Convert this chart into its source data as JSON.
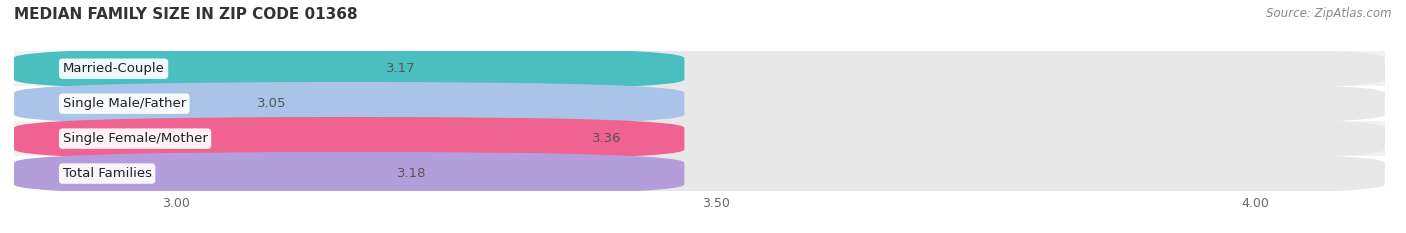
{
  "title": "MEDIAN FAMILY SIZE IN ZIP CODE 01368",
  "source": "Source: ZipAtlas.com",
  "categories": [
    "Married-Couple",
    "Single Male/Father",
    "Single Female/Mother",
    "Total Families"
  ],
  "values": [
    3.17,
    3.05,
    3.36,
    3.18
  ],
  "bar_colors": [
    "#4bbfbf",
    "#aac4e8",
    "#f06292",
    "#b39ddb"
  ],
  "bar_bg_color": "#e8e8e8",
  "xlim": [
    2.85,
    4.12
  ],
  "xticks": [
    3.0,
    3.5,
    4.0
  ],
  "bar_height": 0.62,
  "label_fontsize": 9.5,
  "value_fontsize": 9.5,
  "title_fontsize": 11,
  "source_fontsize": 8.5,
  "background_color": "#ffffff",
  "row_bg_colors": [
    "#f2f2f2",
    "#ffffff",
    "#f2f2f2",
    "#ffffff"
  ]
}
